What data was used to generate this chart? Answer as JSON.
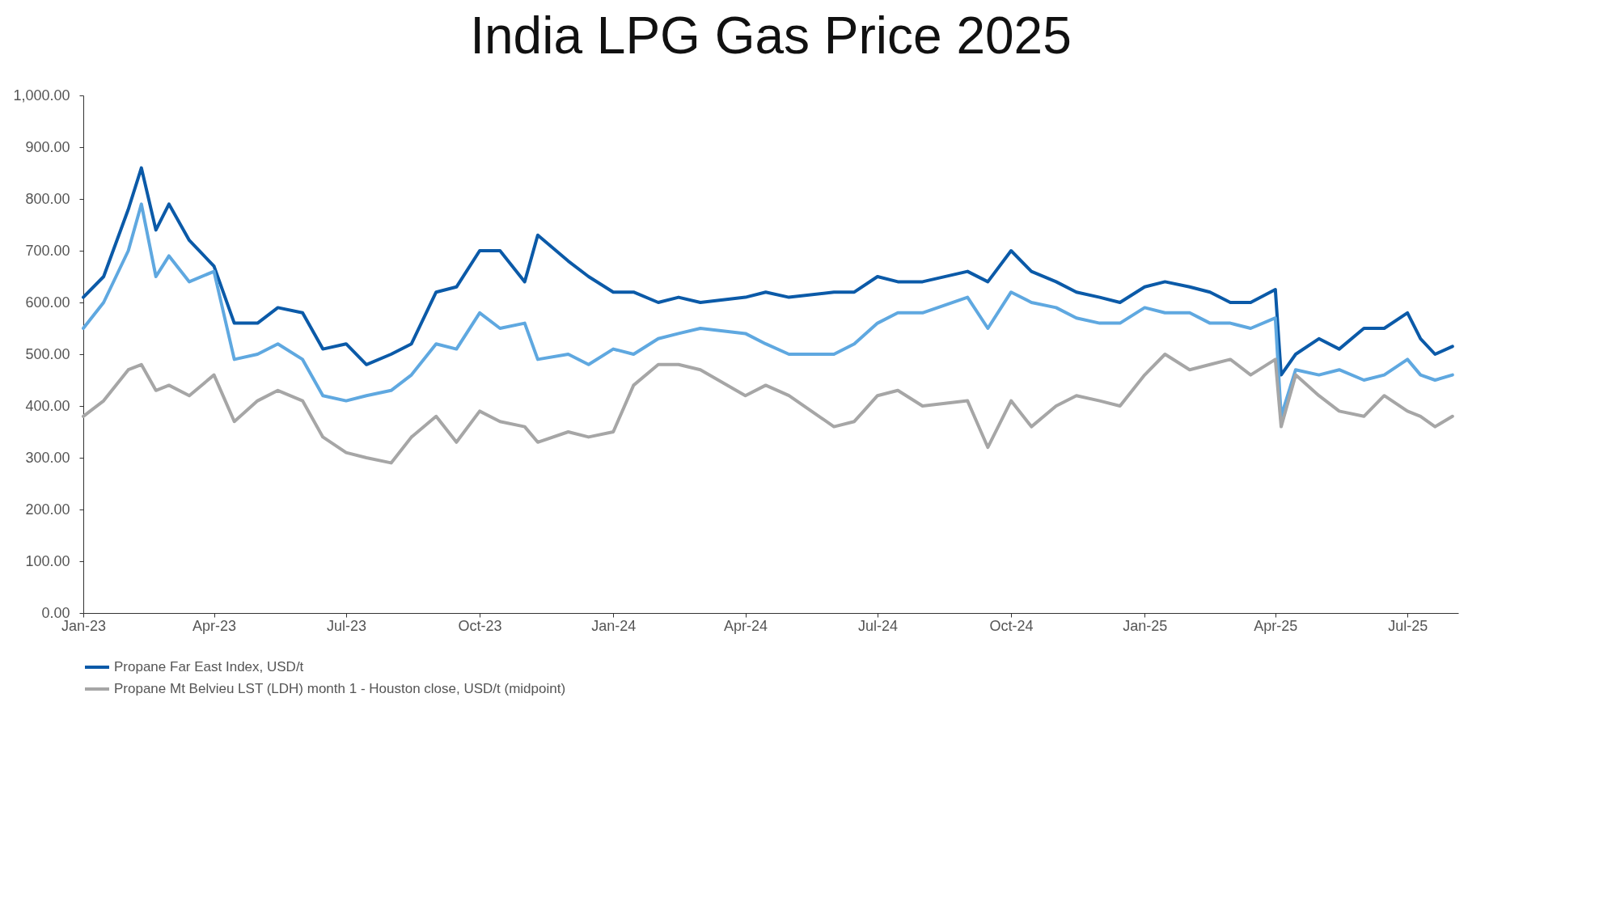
{
  "chart_data": {
    "type": "line",
    "title": "India LPG Gas Price 2025",
    "x": [
      "2023-01-01",
      "2023-01-15",
      "2023-02-01",
      "2023-02-10",
      "2023-02-20",
      "2023-03-01",
      "2023-03-15",
      "2023-04-01",
      "2023-04-15",
      "2023-05-01",
      "2023-05-15",
      "2023-06-01",
      "2023-06-15",
      "2023-07-01",
      "2023-07-15",
      "2023-08-01",
      "2023-08-15",
      "2023-09-01",
      "2023-09-15",
      "2023-10-01",
      "2023-10-15",
      "2023-11-01",
      "2023-11-10",
      "2023-12-01",
      "2023-12-15",
      "2024-01-01",
      "2024-01-15",
      "2024-02-01",
      "2024-02-15",
      "2024-03-01",
      "2024-04-01",
      "2024-04-15",
      "2024-05-01",
      "2024-06-01",
      "2024-06-15",
      "2024-07-01",
      "2024-07-15",
      "2024-08-01",
      "2024-09-01",
      "2024-09-15",
      "2024-10-01",
      "2024-10-15",
      "2024-11-01",
      "2024-11-15",
      "2024-12-01",
      "2024-12-15",
      "2025-01-01",
      "2025-01-15",
      "2025-02-01",
      "2025-02-15",
      "2025-03-01",
      "2025-03-15",
      "2025-04-01",
      "2025-04-05",
      "2025-04-15",
      "2025-05-01",
      "2025-05-15",
      "2025-06-01",
      "2025-06-15",
      "2025-07-01",
      "2025-07-10",
      "2025-07-20",
      "2025-08-01"
    ],
    "series": [
      {
        "name": "Propane Far East Index, USD/t",
        "color": "#0b5aa8",
        "values": [
          610,
          650,
          780,
          860,
          740,
          790,
          720,
          670,
          560,
          560,
          590,
          580,
          510,
          520,
          480,
          500,
          520,
          620,
          630,
          700,
          700,
          640,
          730,
          680,
          650,
          620,
          620,
          600,
          610,
          600,
          610,
          620,
          610,
          620,
          620,
          650,
          640,
          640,
          660,
          640,
          700,
          660,
          640,
          620,
          610,
          600,
          630,
          640,
          630,
          620,
          600,
          600,
          625,
          460,
          500,
          530,
          510,
          550,
          550,
          580,
          530,
          500,
          515
        ]
      },
      {
        "color": "#5fa8e0",
        "values": [
          550,
          600,
          700,
          790,
          650,
          690,
          640,
          660,
          490,
          500,
          520,
          490,
          420,
          410,
          420,
          430,
          460,
          520,
          510,
          580,
          550,
          560,
          490,
          500,
          480,
          510,
          500,
          530,
          540,
          550,
          540,
          520,
          500,
          500,
          520,
          560,
          580,
          580,
          610,
          550,
          620,
          600,
          590,
          570,
          560,
          560,
          590,
          580,
          580,
          560,
          560,
          550,
          570,
          380,
          470,
          460,
          470,
          450,
          460,
          490,
          460,
          450,
          460
        ]
      },
      {
        "name": "Propane Mt Belvieu LST (LDH) month 1 - Houston close, USD/t (midpoint)",
        "color": "#a6a6a6",
        "values": [
          380,
          410,
          470,
          480,
          430,
          440,
          420,
          460,
          370,
          410,
          430,
          410,
          340,
          310,
          300,
          290,
          340,
          380,
          330,
          390,
          370,
          360,
          330,
          350,
          340,
          350,
          440,
          480,
          480,
          470,
          420,
          440,
          420,
          360,
          370,
          420,
          430,
          400,
          410,
          320,
          410,
          360,
          400,
          420,
          410,
          400,
          460,
          500,
          470,
          480,
          490,
          460,
          490,
          360,
          460,
          420,
          390,
          380,
          420,
          390,
          380,
          360,
          380
        ]
      }
    ],
    "xlim": [
      "2023-01-01",
      "2025-08-05"
    ],
    "xticks": [
      {
        "value": "2023-01-01",
        "label": "Jan-23"
      },
      {
        "value": "2023-04-01",
        "label": "Apr-23"
      },
      {
        "value": "2023-07-01",
        "label": "Jul-23"
      },
      {
        "value": "2023-10-01",
        "label": "Oct-23"
      },
      {
        "value": "2024-01-01",
        "label": "Jan-24"
      },
      {
        "value": "2024-04-01",
        "label": "Apr-24"
      },
      {
        "value": "2024-07-01",
        "label": "Jul-24"
      },
      {
        "value": "2024-10-01",
        "label": "Oct-24"
      },
      {
        "value": "2025-01-01",
        "label": "Jan-25"
      },
      {
        "value": "2025-04-01",
        "label": "Apr-25"
      },
      {
        "value": "2025-07-01",
        "label": "Jul-25"
      }
    ],
    "ylim": [
      0,
      1000
    ],
    "yticks": [
      {
        "value": 0,
        "label": "0.00"
      },
      {
        "value": 100,
        "label": "100.00"
      },
      {
        "value": 200,
        "label": "200.00"
      },
      {
        "value": 300,
        "label": "300.00"
      },
      {
        "value": 400,
        "label": "400.00"
      },
      {
        "value": 500,
        "label": "500.00"
      },
      {
        "value": 600,
        "label": "600.00"
      },
      {
        "value": 700,
        "label": "700.00"
      },
      {
        "value": 800,
        "label": "800.00"
      },
      {
        "value": 900,
        "label": "900.00"
      },
      {
        "value": 1000,
        "label": "1,000.00"
      }
    ],
    "grid": false,
    "legend": "bottom"
  }
}
